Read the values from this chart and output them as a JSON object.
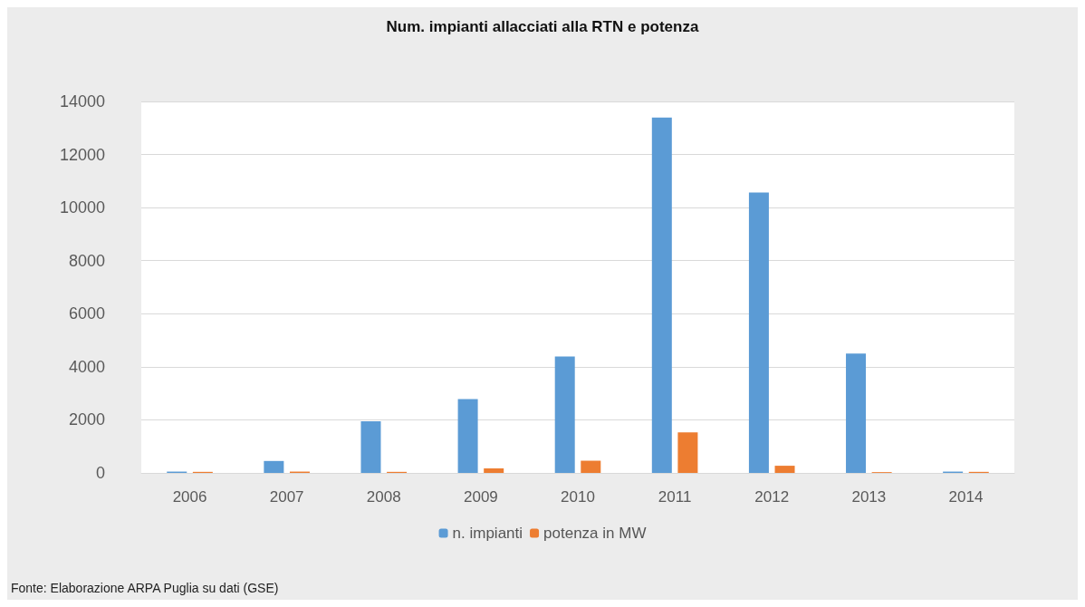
{
  "chart_data": {
    "type": "bar",
    "title": "Num. impianti allacciati alla RTN e potenza",
    "categories": [
      "2006",
      "2007",
      "2008",
      "2009",
      "2010",
      "2011",
      "2012",
      "2013",
      "2014"
    ],
    "series": [
      {
        "name": "n. impianti",
        "color": "#5b9bd5",
        "values": [
          50,
          450,
          1950,
          2780,
          4390,
          13390,
          10570,
          4500,
          50
        ]
      },
      {
        "name": "potenza in MW",
        "color": "#ed7d31",
        "values": [
          40,
          50,
          40,
          170,
          460,
          1530,
          270,
          30,
          40
        ]
      }
    ],
    "ylim": [
      0,
      14000
    ],
    "yticks": [
      0,
      2000,
      4000,
      6000,
      8000,
      10000,
      12000,
      14000
    ],
    "grid": "y",
    "legend": "bottom",
    "annotations": [
      "Fonte: Elaborazione ARPA Puglia su dati (GSE)"
    ]
  }
}
